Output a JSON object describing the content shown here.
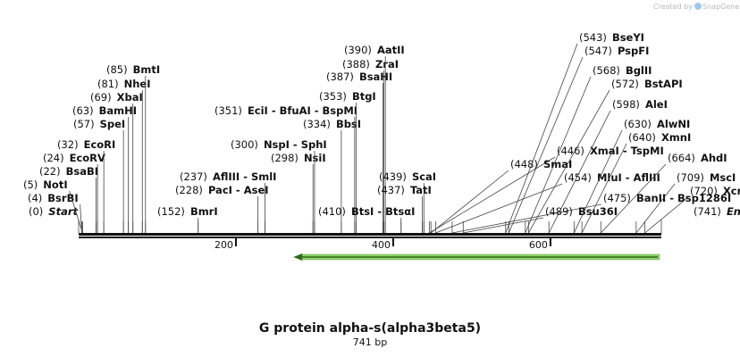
{
  "credit": {
    "prefix": "Created by",
    "brand": "SnapGene"
  },
  "title": "G protein alpha-s(alpha3beta5)",
  "length_label": "741 bp",
  "sequence": {
    "start": 0,
    "end": 741,
    "start_label": "Start",
    "end_label": "End"
  },
  "ticks": [
    {
      "pos": 200,
      "label": "200"
    },
    {
      "pos": 400,
      "label": "400"
    },
    {
      "pos": 600,
      "label": "600"
    }
  ],
  "feature_arrow": {
    "from": 741,
    "to": 273,
    "direction": "reverse",
    "color": "#8fd46a"
  },
  "sites": [
    {
      "pos": 0,
      "text": "(0)",
      "name": "Start",
      "italic": true
    },
    {
      "pos": 4,
      "text": "(4)",
      "name": "BsrBI"
    },
    {
      "pos": 5,
      "text": "(5)",
      "name": "NotI"
    },
    {
      "pos": 22,
      "text": "(22)",
      "name": "BsaBI"
    },
    {
      "pos": 24,
      "text": "(24)",
      "name": "EcoRV"
    },
    {
      "pos": 32,
      "text": "(32)",
      "name": "EcoRI"
    },
    {
      "pos": 57,
      "text": "(57)",
      "name": "SpeI"
    },
    {
      "pos": 63,
      "text": "(63)",
      "name": "BamHI"
    },
    {
      "pos": 69,
      "text": "(69)",
      "name": "XbaI"
    },
    {
      "pos": 81,
      "text": "(81)",
      "name": "NheI"
    },
    {
      "pos": 85,
      "text": "(85)",
      "name": "BmtI"
    },
    {
      "pos": 152,
      "text": "(152)",
      "name": "BmrI"
    },
    {
      "pos": 228,
      "text": "(228)",
      "name": "PacI - AseI"
    },
    {
      "pos": 237,
      "text": "(237)",
      "name": "AflIII - SmlI"
    },
    {
      "pos": 298,
      "text": "(298)",
      "name": "NsiI"
    },
    {
      "pos": 300,
      "text": "(300)",
      "name": "NspI - SphI"
    },
    {
      "pos": 334,
      "text": "(334)",
      "name": "BbsI"
    },
    {
      "pos": 351,
      "text": "(351)",
      "name": "EciI - BfuAI - BspMI"
    },
    {
      "pos": 353,
      "text": "(353)",
      "name": "BtgI"
    },
    {
      "pos": 387,
      "text": "(387)",
      "name": "BsaHI"
    },
    {
      "pos": 388,
      "text": "(388)",
      "name": "ZraI"
    },
    {
      "pos": 390,
      "text": "(390)",
      "name": "AatII"
    },
    {
      "pos": 410,
      "text": "(410)",
      "name": "BtsI - BtsαI"
    },
    {
      "pos": 437,
      "text": "(437)",
      "name": "TatI"
    },
    {
      "pos": 439,
      "text": "(439)",
      "name": "ScaI"
    },
    {
      "pos": 446,
      "text": "(446)",
      "name": "XmaI - TspMI"
    },
    {
      "pos": 448,
      "text": "(448)",
      "name": "SmaI"
    },
    {
      "pos": 454,
      "text": "(454)",
      "name": "MluI - AflIII"
    },
    {
      "pos": 475,
      "text": "(475)",
      "name": "BanII - Bsp1286I"
    },
    {
      "pos": 489,
      "text": "(489)",
      "name": "Bsu36I"
    },
    {
      "pos": 543,
      "text": "(543)",
      "name": "BseYI"
    },
    {
      "pos": 547,
      "text": "(547)",
      "name": "PspFI"
    },
    {
      "pos": 568,
      "text": "(568)",
      "name": "BglII"
    },
    {
      "pos": 572,
      "text": "(572)",
      "name": "BstAPI"
    },
    {
      "pos": 598,
      "text": "(598)",
      "name": "AleI"
    },
    {
      "pos": 630,
      "text": "(630)",
      "name": "AlwNI"
    },
    {
      "pos": 640,
      "text": "(640)",
      "name": "XmnI"
    },
    {
      "pos": 664,
      "text": "(664)",
      "name": "AhdI"
    },
    {
      "pos": 709,
      "text": "(709)",
      "name": "MscI"
    },
    {
      "pos": 720,
      "text": "(720)",
      "name": "XcmI"
    },
    {
      "pos": 741,
      "text": "(741)",
      "name": "End",
      "italic": true
    }
  ]
}
